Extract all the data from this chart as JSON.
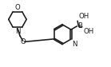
{
  "bg_color": "#ffffff",
  "line_color": "#1a1a1a",
  "text_color": "#1a1a1a",
  "line_width": 1.15,
  "font_size": 6.2,
  "figsize": [
    1.39,
    0.84
  ],
  "dpi": 100,
  "xlim": [
    0,
    13
  ],
  "ylim": [
    0,
    7.8
  ]
}
